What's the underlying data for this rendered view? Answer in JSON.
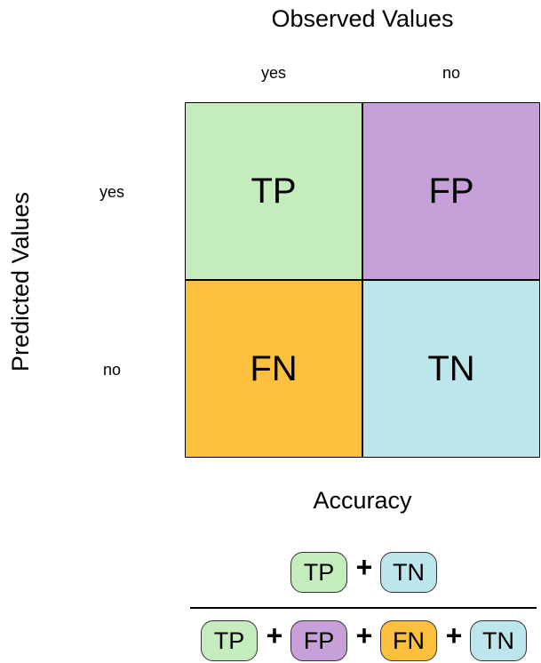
{
  "observed_title": "Observed Values",
  "predicted_title": "Predicted Values",
  "columns": [
    "yes",
    "no"
  ],
  "rows": [
    "yes",
    "no"
  ],
  "cells": {
    "tp": {
      "label": "TP",
      "color": "#c5ecbd"
    },
    "fp": {
      "label": "FP",
      "color": "#c7a0da"
    },
    "fn": {
      "label": "FN",
      "color": "#fdbf3e"
    },
    "tn": {
      "label": "TN",
      "color": "#bde5ec"
    }
  },
  "accuracy": {
    "title": "Accuracy",
    "numerator": [
      "TP",
      "TN"
    ],
    "denominator": [
      "TP",
      "FP",
      "FN",
      "TN"
    ],
    "operator": "+"
  }
}
